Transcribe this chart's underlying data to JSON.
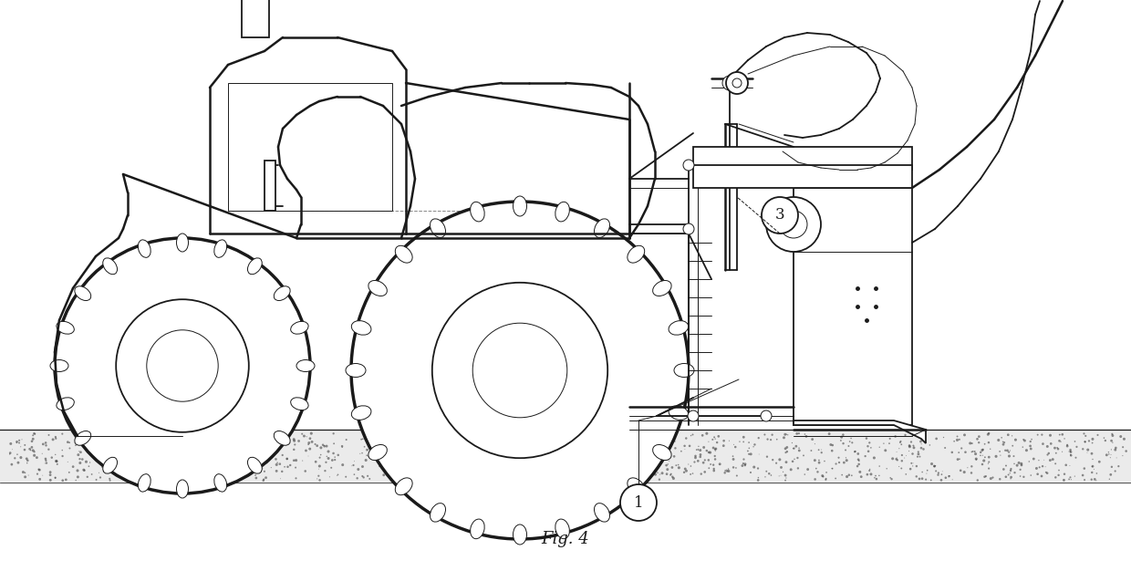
{
  "fig_width": 12.4,
  "fig_height": 6.26,
  "dpi": 100,
  "bg_color": "#ffffff",
  "line_color": "#1a1a1a",
  "caption": "Fig. 4",
  "caption_fontsize": 13,
  "label1": "1",
  "label3": "3"
}
